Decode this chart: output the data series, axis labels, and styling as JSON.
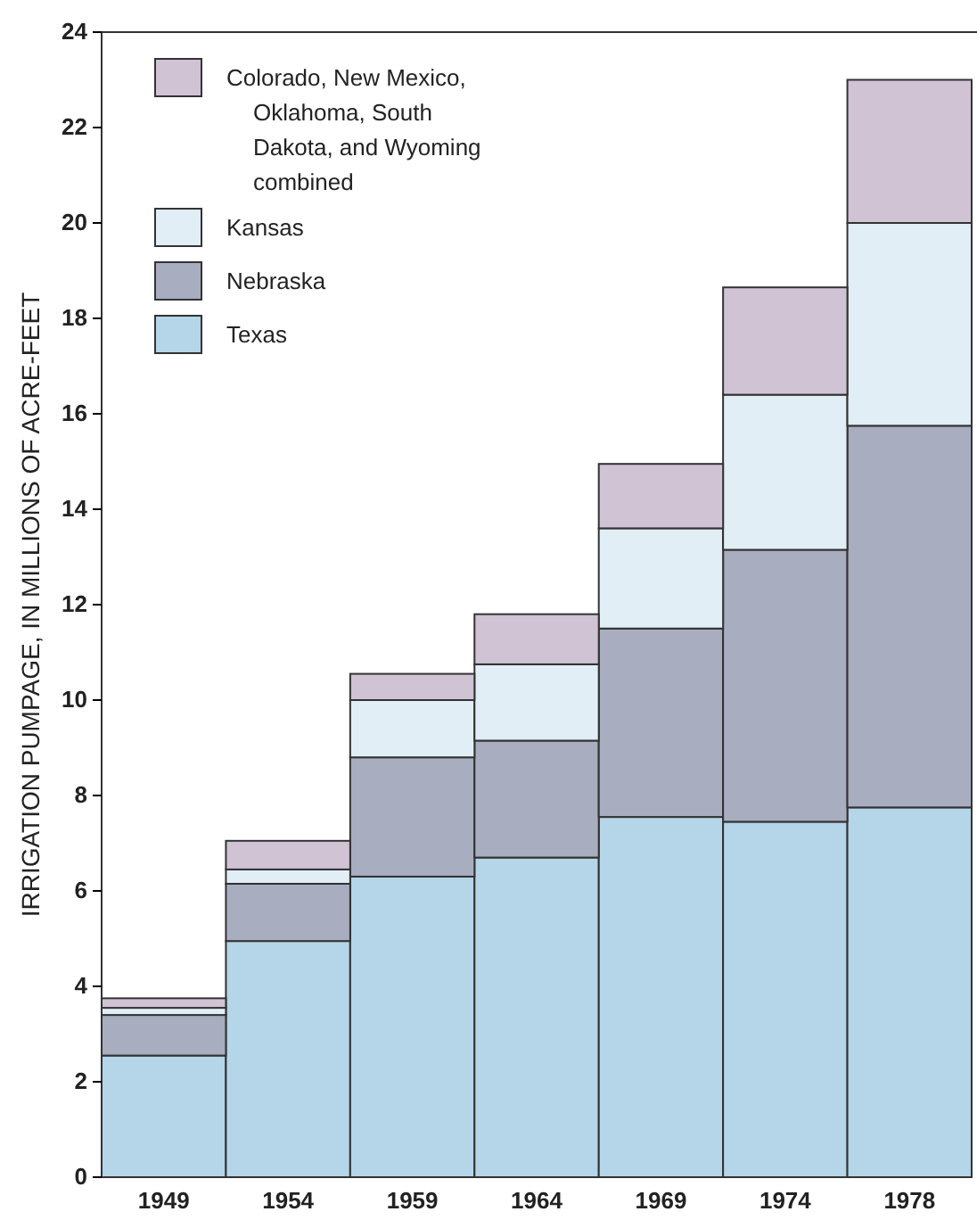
{
  "chart_data": {
    "type": "bar",
    "stacked": true,
    "ylabel": "IRRIGATION PUMPAGE, IN MILLIONS OF ACRE-FEET",
    "categories": [
      "1949",
      "1954",
      "1959",
      "1964",
      "1969",
      "1974",
      "1978"
    ],
    "series": [
      {
        "name": "Texas",
        "color": "#b5d5e8",
        "values": [
          2.55,
          4.95,
          6.3,
          6.7,
          7.55,
          7.45,
          7.75
        ]
      },
      {
        "name": "Nebraska",
        "color": "#a9adc0",
        "values": [
          0.85,
          1.2,
          2.5,
          2.45,
          3.95,
          5.7,
          8.0
        ]
      },
      {
        "name": "Kansas",
        "color": "#e1eef6",
        "values": [
          0.15,
          0.3,
          1.2,
          1.6,
          2.1,
          3.25,
          4.25
        ]
      },
      {
        "name": "Colorado, New Mexico, Oklahoma, South Dakota, and Wyoming combined",
        "color": "#cfc3d4",
        "values": [
          0.2,
          0.6,
          0.55,
          1.05,
          1.35,
          2.25,
          3.0
        ]
      }
    ],
    "ylim": [
      0,
      24
    ],
    "yticks": [
      0,
      2,
      4,
      6,
      8,
      10,
      12,
      14,
      16,
      18,
      20,
      22,
      24
    ],
    "grid": false,
    "legend": "top left"
  }
}
